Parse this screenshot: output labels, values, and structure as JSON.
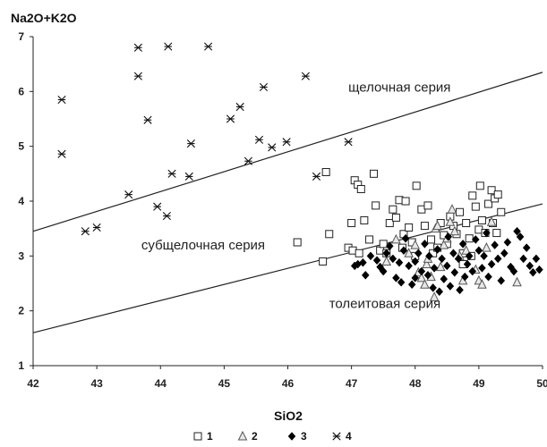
{
  "chart_data": {
    "type": "scatter",
    "ylabel": "Na2O+K2O",
    "xlabel": "SiO2",
    "xlim": [
      42,
      50
    ],
    "ylim": [
      1,
      7
    ],
    "x_ticks": [
      "42",
      "43",
      "44",
      "45",
      "46",
      "47",
      "48",
      "49",
      "50"
    ],
    "y_ticks": [
      "1",
      "2",
      "3",
      "4",
      "5",
      "6",
      "7"
    ],
    "grid": false,
    "legend_position": "bottom",
    "boundary_lines": [
      {
        "from": [
          42,
          3.45
        ],
        "to": [
          50,
          6.35
        ]
      },
      {
        "from": [
          42,
          1.6
        ],
        "to": [
          50,
          3.95
        ]
      }
    ],
    "annotations": [
      {
        "text": "щелочная серия",
        "x": 46.95,
        "y": 6.0
      },
      {
        "text": "субщелочная серия",
        "x": 43.7,
        "y": 3.12
      },
      {
        "text": "толеитовая серия",
        "x": 46.65,
        "y": 2.05
      }
    ],
    "series": [
      {
        "name": "1",
        "marker": "square-open",
        "points": [
          [
            46.15,
            3.25
          ],
          [
            46.55,
            2.9
          ],
          [
            46.6,
            4.53
          ],
          [
            46.65,
            3.4
          ],
          [
            46.95,
            3.15
          ],
          [
            47.0,
            3.6
          ],
          [
            47.02,
            3.1
          ],
          [
            47.05,
            4.38
          ],
          [
            47.1,
            4.3
          ],
          [
            47.12,
            3.05
          ],
          [
            47.15,
            4.22
          ],
          [
            47.2,
            3.65
          ],
          [
            47.28,
            3.3
          ],
          [
            47.35,
            4.5
          ],
          [
            47.38,
            3.92
          ],
          [
            47.45,
            3.1
          ],
          [
            47.5,
            3.22
          ],
          [
            47.55,
            3.05
          ],
          [
            47.6,
            3.6
          ],
          [
            47.65,
            3.85
          ],
          [
            47.7,
            3.7
          ],
          [
            47.75,
            4.02
          ],
          [
            47.8,
            3.15
          ],
          [
            47.82,
            3.4
          ],
          [
            47.85,
            4.0
          ],
          [
            47.9,
            3.52
          ],
          [
            47.95,
            3.25
          ],
          [
            48.0,
            3.0
          ],
          [
            48.02,
            4.28
          ],
          [
            48.1,
            3.85
          ],
          [
            48.15,
            3.55
          ],
          [
            48.2,
            3.92
          ],
          [
            48.25,
            3.3
          ],
          [
            48.28,
            3.05
          ],
          [
            48.35,
            3.15
          ],
          [
            48.4,
            3.6
          ],
          [
            48.45,
            3.38
          ],
          [
            48.5,
            3.22
          ],
          [
            48.55,
            3.72
          ],
          [
            48.6,
            3.55
          ],
          [
            48.65,
            3.4
          ],
          [
            48.7,
            3.8
          ],
          [
            48.75,
            3.05
          ],
          [
            48.8,
            3.6
          ],
          [
            48.85,
            3.32
          ],
          [
            48.9,
            4.1
          ],
          [
            48.95,
            3.9
          ],
          [
            49.0,
            3.48
          ],
          [
            49.02,
            4.28
          ],
          [
            49.05,
            3.65
          ],
          [
            49.1,
            3.42
          ],
          [
            49.15,
            3.95
          ],
          [
            49.2,
            4.2
          ],
          [
            49.22,
            3.6
          ],
          [
            49.25,
            4.05
          ],
          [
            49.3,
            4.12
          ],
          [
            49.35,
            3.8
          ],
          [
            49.28,
            3.42
          ],
          [
            48.75,
            2.85
          ],
          [
            48.88,
            3.0
          ]
        ]
      },
      {
        "name": "2",
        "marker": "triangle-open",
        "points": [
          [
            47.55,
            2.9
          ],
          [
            47.7,
            3.3
          ],
          [
            47.9,
            3.05
          ],
          [
            48.0,
            3.2
          ],
          [
            48.05,
            2.7
          ],
          [
            48.1,
            2.6
          ],
          [
            48.15,
            2.48
          ],
          [
            48.18,
            2.85
          ],
          [
            48.2,
            2.95
          ],
          [
            48.25,
            2.62
          ],
          [
            48.3,
            2.25
          ],
          [
            48.32,
            3.5
          ],
          [
            48.35,
            3.55
          ],
          [
            48.4,
            2.8
          ],
          [
            48.45,
            3.2
          ],
          [
            48.5,
            3.32
          ],
          [
            48.55,
            3.62
          ],
          [
            48.58,
            3.85
          ],
          [
            48.62,
            3.45
          ],
          [
            48.7,
            3.0
          ],
          [
            48.75,
            2.55
          ],
          [
            48.8,
            3.1
          ],
          [
            48.95,
            2.75
          ],
          [
            49.0,
            2.55
          ],
          [
            49.05,
            2.48
          ],
          [
            49.12,
            3.15
          ],
          [
            49.2,
            3.62
          ],
          [
            49.6,
            2.52
          ]
        ]
      },
      {
        "name": "3",
        "marker": "diamond-filled",
        "points": [
          [
            47.1,
            2.85
          ],
          [
            47.18,
            2.88
          ],
          [
            47.3,
            3.0
          ],
          [
            47.4,
            2.92
          ],
          [
            47.45,
            2.8
          ],
          [
            47.5,
            2.72
          ],
          [
            47.55,
            3.05
          ],
          [
            47.6,
            3.18
          ],
          [
            47.65,
            2.95
          ],
          [
            47.7,
            2.6
          ],
          [
            47.75,
            2.88
          ],
          [
            47.78,
            2.52
          ],
          [
            47.82,
            3.1
          ],
          [
            47.85,
            3.32
          ],
          [
            47.9,
            2.82
          ],
          [
            47.95,
            2.48
          ],
          [
            48.0,
            2.9
          ],
          [
            48.05,
            3.05
          ],
          [
            48.1,
            2.72
          ],
          [
            48.15,
            3.22
          ],
          [
            48.2,
            2.65
          ],
          [
            48.22,
            3.0
          ],
          [
            48.28,
            2.42
          ],
          [
            48.3,
            2.78
          ],
          [
            48.35,
            3.12
          ],
          [
            48.38,
            2.35
          ],
          [
            48.42,
            2.95
          ],
          [
            48.45,
            2.58
          ],
          [
            48.5,
            2.82
          ],
          [
            48.52,
            3.35
          ],
          [
            48.55,
            2.45
          ],
          [
            48.6,
            3.05
          ],
          [
            48.62,
            2.7
          ],
          [
            48.68,
            2.95
          ],
          [
            48.7,
            2.38
          ],
          [
            48.75,
            3.22
          ],
          [
            48.78,
            2.62
          ],
          [
            48.82,
            2.85
          ],
          [
            48.85,
            3.0
          ],
          [
            48.9,
            2.72
          ],
          [
            48.95,
            3.3
          ],
          [
            49.0,
            3.1
          ],
          [
            49.05,
            2.78
          ],
          [
            49.08,
            3.0
          ],
          [
            49.12,
            3.42
          ],
          [
            49.15,
            2.62
          ],
          [
            49.2,
            2.85
          ],
          [
            49.25,
            3.2
          ],
          [
            49.3,
            2.95
          ],
          [
            49.35,
            2.55
          ],
          [
            49.4,
            3.05
          ],
          [
            49.45,
            3.25
          ],
          [
            49.5,
            2.8
          ],
          [
            49.55,
            2.72
          ],
          [
            49.6,
            3.45
          ],
          [
            49.65,
            3.35
          ],
          [
            49.7,
            2.95
          ],
          [
            49.75,
            3.15
          ],
          [
            49.8,
            2.82
          ],
          [
            49.85,
            2.7
          ],
          [
            49.9,
            2.95
          ],
          [
            49.95,
            2.75
          ],
          [
            47.05,
            2.82
          ],
          [
            47.22,
            2.65
          ],
          [
            48.0,
            2.6
          ]
        ]
      },
      {
        "name": "4",
        "marker": "asterisk",
        "points": [
          [
            42.45,
            5.85
          ],
          [
            42.45,
            4.86
          ],
          [
            42.82,
            3.45
          ],
          [
            43.0,
            3.52
          ],
          [
            43.5,
            4.12
          ],
          [
            43.65,
            6.8
          ],
          [
            43.65,
            6.28
          ],
          [
            43.8,
            5.48
          ],
          [
            43.95,
            3.9
          ],
          [
            44.1,
            3.73
          ],
          [
            44.12,
            6.82
          ],
          [
            44.18,
            4.5
          ],
          [
            44.45,
            4.45
          ],
          [
            44.48,
            5.05
          ],
          [
            44.75,
            6.82
          ],
          [
            45.1,
            5.5
          ],
          [
            45.25,
            5.72
          ],
          [
            45.38,
            4.73
          ],
          [
            45.55,
            5.12
          ],
          [
            45.62,
            6.08
          ],
          [
            45.75,
            4.98
          ],
          [
            45.98,
            5.08
          ],
          [
            46.28,
            6.28
          ],
          [
            46.45,
            4.45
          ],
          [
            46.95,
            5.08
          ]
        ]
      }
    ]
  }
}
